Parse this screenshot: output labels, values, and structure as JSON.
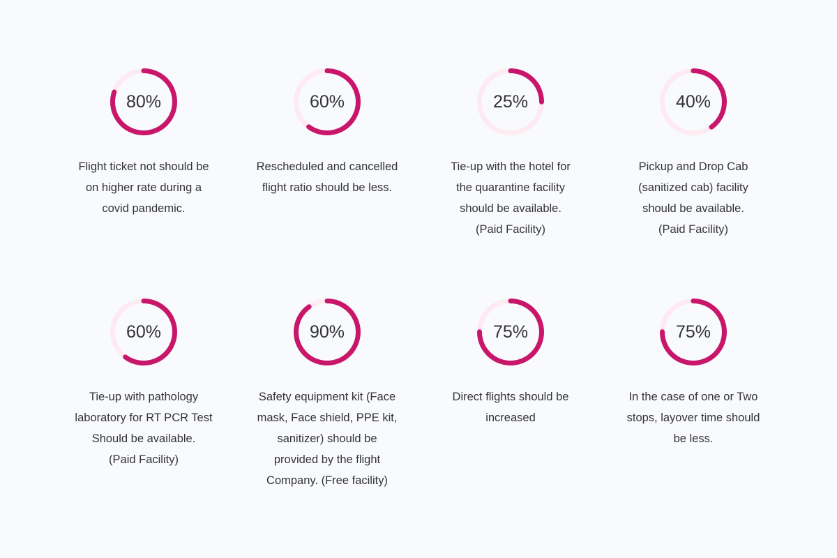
{
  "colors": {
    "accent": "#c8176a",
    "track": "#fdebf1",
    "background": "#f9fafd",
    "text": "#333333"
  },
  "chart_data": {
    "type": "gauge",
    "items": [
      {
        "value": 80,
        "value_label": "80%",
        "lines": [
          "Flight ticket not should be",
          "on higher rate during a",
          "covid pandemic."
        ]
      },
      {
        "value": 60,
        "value_label": "60%",
        "lines": [
          "Rescheduled and cancelled",
          "flight ratio should be less."
        ]
      },
      {
        "value": 25,
        "value_label": "25%",
        "lines": [
          "Tie-up with the hotel for",
          "the quarantine facility",
          "should be available.",
          "(Paid Facility)"
        ]
      },
      {
        "value": 40,
        "value_label": "40%",
        "lines": [
          "Pickup and Drop Cab",
          "(sanitized cab) facility",
          "should be available.",
          "(Paid Facility)"
        ]
      },
      {
        "value": 60,
        "value_label": "60%",
        "lines": [
          "Tie-up with pathology",
          "laboratory for RT PCR Test",
          "Should be available.",
          "(Paid Facility)"
        ]
      },
      {
        "value": 90,
        "value_label": "90%",
        "lines": [
          "Safety equipment kit (Face",
          "mask, Face shield, PPE kit,",
          "sanitizer) should be",
          "provided by the flight",
          "Company. (Free facility)"
        ]
      },
      {
        "value": 75,
        "value_label": "75%",
        "lines": [
          "Direct flights should be",
          "increased"
        ]
      },
      {
        "value": 75,
        "value_label": "75%",
        "lines": [
          "In the case of one or Two",
          "stops, layover time should",
          "be less."
        ]
      }
    ]
  }
}
